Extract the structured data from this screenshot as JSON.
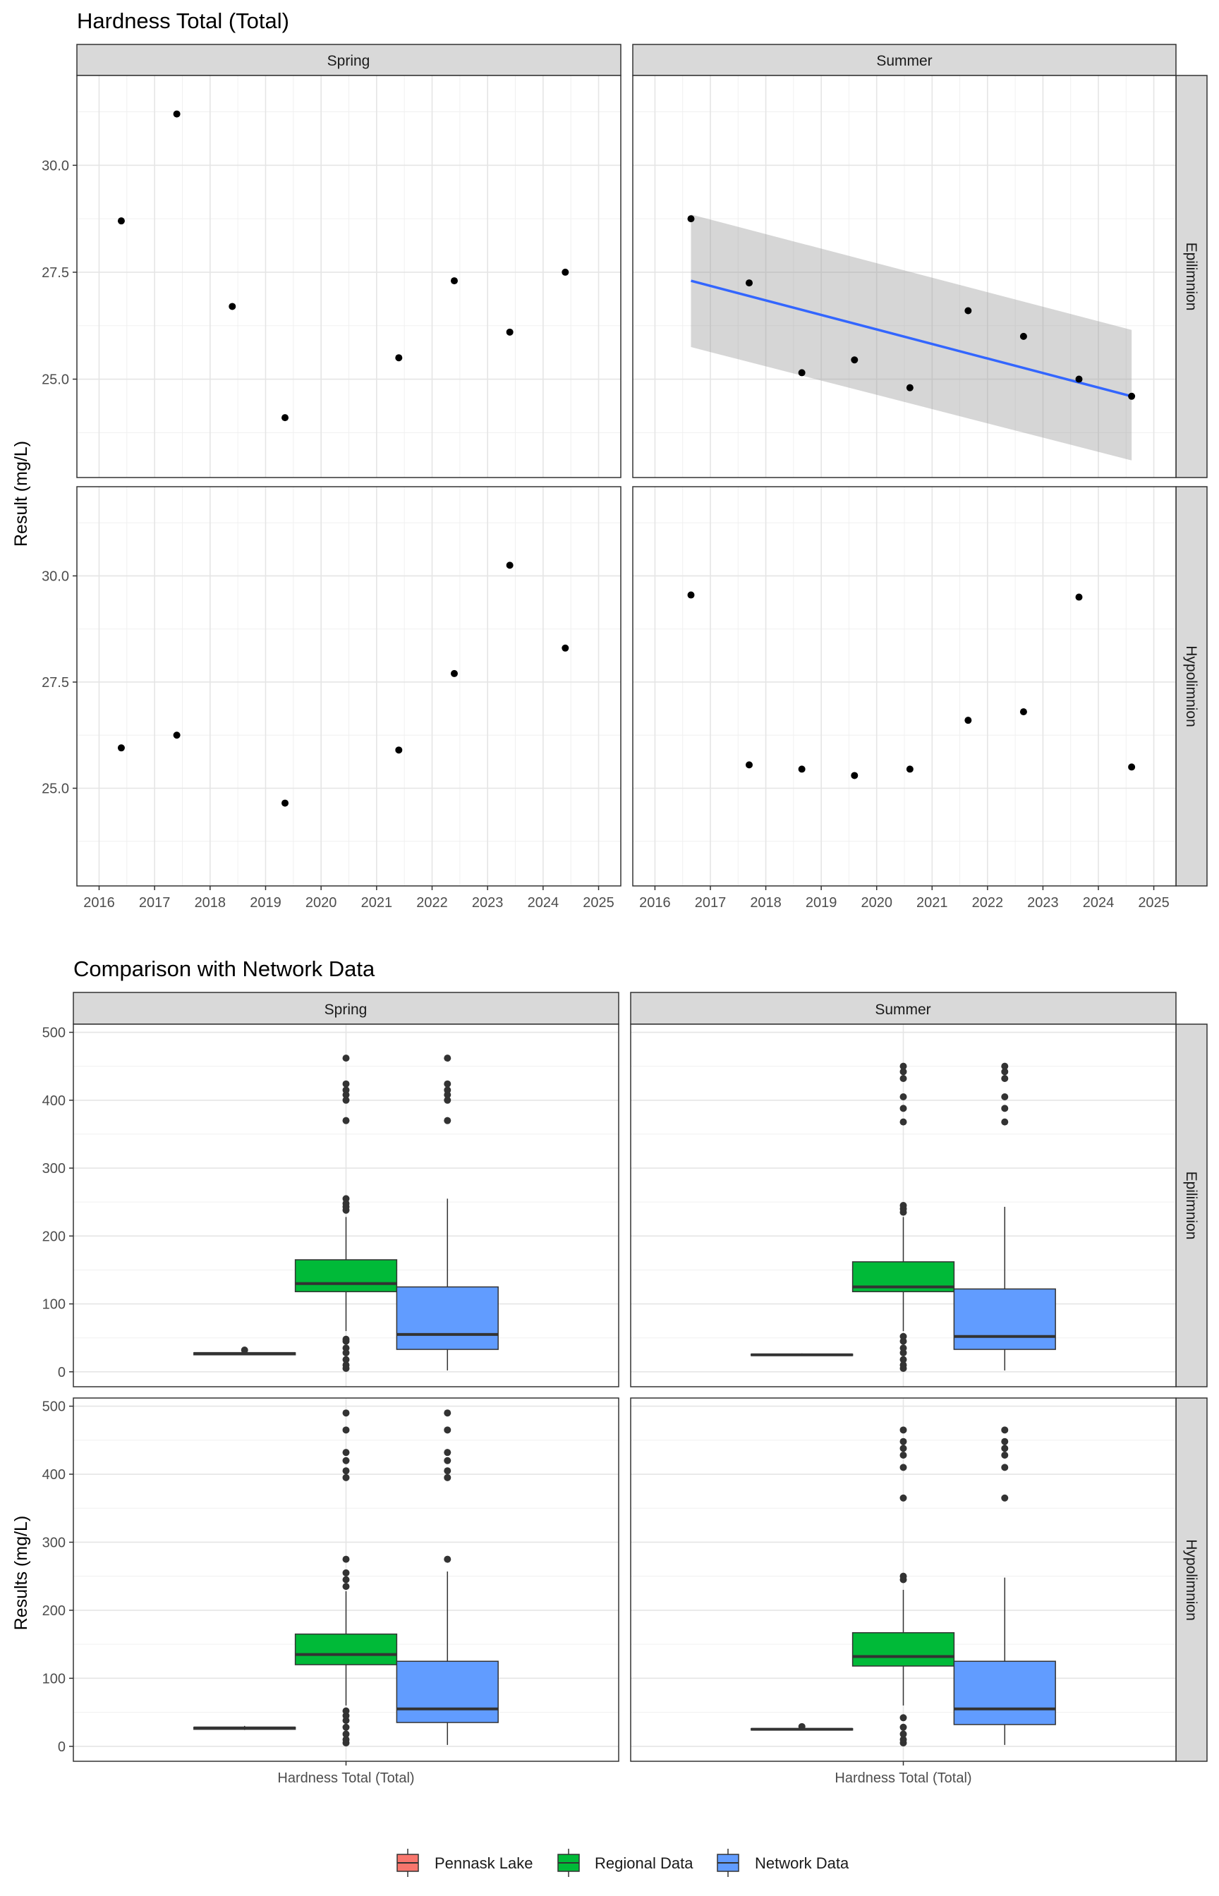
{
  "chart_data": [
    {
      "type": "scatter",
      "title": "Hardness Total (Total)",
      "ylabel": "Result (mg/L)",
      "xlabel": "",
      "x_ticks": [
        "2016",
        "2017",
        "2018",
        "2019",
        "2020",
        "2021",
        "2022",
        "2023",
        "2024",
        "2025"
      ],
      "y_ticks": [
        "25.0",
        "27.5",
        "30.0"
      ],
      "xlim": [
        2015.6,
        2025.4
      ],
      "ylim": [
        22.7,
        32.1
      ],
      "grid": true,
      "column_facets": [
        "Spring",
        "Summer"
      ],
      "row_facets": [
        "Epilimnion",
        "Hypolimnion"
      ],
      "panels": [
        {
          "column": "Spring",
          "row": "Epilimnion",
          "points": [
            [
              2016.4,
              28.7
            ],
            [
              2017.4,
              31.2
            ],
            [
              2018.4,
              26.7
            ],
            [
              2019.35,
              24.1
            ],
            [
              2021.4,
              25.5
            ],
            [
              2022.4,
              27.3
            ],
            [
              2023.4,
              26.1
            ],
            [
              2024.4,
              27.5
            ]
          ]
        },
        {
          "column": "Summer",
          "row": "Epilimnion",
          "points": [
            [
              2016.65,
              28.75
            ],
            [
              2017.7,
              27.25
            ],
            [
              2018.65,
              25.15
            ],
            [
              2019.6,
              25.45
            ],
            [
              2020.6,
              24.8
            ],
            [
              2021.65,
              26.6
            ],
            [
              2022.65,
              26.0
            ],
            [
              2023.65,
              25.0
            ],
            [
              2024.6,
              24.6
            ]
          ],
          "trend": {
            "method": "linear",
            "x": [
              2016.65,
              2024.6
            ],
            "y": [
              27.3,
              24.6
            ],
            "ci_lower": [
              25.75,
              23.1
            ],
            "ci_upper": [
              28.85,
              26.15
            ]
          }
        },
        {
          "column": "Spring",
          "row": "Hypolimnion",
          "points": [
            [
              2016.4,
              25.95
            ],
            [
              2017.4,
              26.25
            ],
            [
              2019.35,
              24.65
            ],
            [
              2021.4,
              25.9
            ],
            [
              2022.4,
              27.7
            ],
            [
              2023.4,
              30.25
            ],
            [
              2024.4,
              28.3
            ]
          ]
        },
        {
          "column": "Summer",
          "row": "Hypolimnion",
          "points": [
            [
              2016.65,
              29.55
            ],
            [
              2017.7,
              25.55
            ],
            [
              2018.65,
              25.45
            ],
            [
              2019.6,
              25.3
            ],
            [
              2020.6,
              25.45
            ],
            [
              2021.65,
              26.6
            ],
            [
              2022.65,
              26.8
            ],
            [
              2023.65,
              29.5
            ],
            [
              2024.6,
              25.5
            ]
          ]
        }
      ]
    },
    {
      "type": "boxplot",
      "title": "Comparison with Network Data",
      "ylabel": "Results (mg/L)",
      "category_label": "Hardness Total (Total)",
      "y_ticks": [
        "0",
        "100",
        "200",
        "300",
        "400",
        "500"
      ],
      "ylim": [
        -22,
        512
      ],
      "grid": true,
      "column_facets": [
        "Spring",
        "Summer"
      ],
      "row_facets": [
        "Epilimnion",
        "Hypolimnion"
      ],
      "legend": {
        "position": "bottom",
        "entries": [
          {
            "name": "Pennask Lake",
            "color": "#F8766D"
          },
          {
            "name": "Regional Data",
            "color": "#00BA38"
          },
          {
            "name": "Network Data",
            "color": "#619CFF"
          }
        ]
      },
      "panels": [
        {
          "column": "Spring",
          "row": "Epilimnion",
          "boxes": [
            {
              "series": "Pennask Lake",
              "min": 25,
              "q1": 25,
              "median": 27,
              "q3": 28,
              "max": 29,
              "outliers": [
                32
              ]
            },
            {
              "series": "Regional Data",
              "min": 60,
              "q1": 118,
              "median": 130,
              "q3": 165,
              "max": 228,
              "outliers": [
                5,
                10,
                18,
                28,
                35,
                45,
                48,
                238,
                243,
                248,
                255,
                370,
                400,
                408,
                415,
                424,
                462
              ]
            },
            {
              "series": "Network Data",
              "min": 2,
              "q1": 33,
              "median": 55,
              "q3": 125,
              "max": 255,
              "outliers": [
                370,
                400,
                408,
                415,
                424,
                462
              ]
            }
          ]
        },
        {
          "column": "Summer",
          "row": "Epilimnion",
          "boxes": [
            {
              "series": "Pennask Lake",
              "min": 24,
              "q1": 24,
              "median": 25,
              "q3": 26,
              "max": 27,
              "outliers": []
            },
            {
              "series": "Regional Data",
              "min": 60,
              "q1": 118,
              "median": 125,
              "q3": 162,
              "max": 228,
              "outliers": [
                5,
                10,
                18,
                28,
                35,
                45,
                52,
                235,
                240,
                245,
                368,
                388,
                405,
                432,
                442,
                450
              ]
            },
            {
              "series": "Network Data",
              "min": 2,
              "q1": 33,
              "median": 52,
              "q3": 122,
              "max": 243,
              "outliers": [
                368,
                388,
                405,
                432,
                442,
                450
              ]
            }
          ]
        },
        {
          "column": "Spring",
          "row": "Hypolimnion",
          "boxes": [
            {
              "series": "Pennask Lake",
              "min": 24,
              "q1": 25,
              "median": 27,
              "q3": 28,
              "max": 30,
              "outliers": []
            },
            {
              "series": "Regional Data",
              "min": 60,
              "q1": 120,
              "median": 135,
              "q3": 165,
              "max": 228,
              "outliers": [
                5,
                10,
                18,
                28,
                38,
                45,
                52,
                235,
                245,
                255,
                275,
                395,
                405,
                420,
                432,
                465,
                490
              ]
            },
            {
              "series": "Network Data",
              "min": 2,
              "q1": 35,
              "median": 55,
              "q3": 125,
              "max": 257,
              "outliers": [
                275,
                395,
                405,
                420,
                432,
                465,
                490
              ]
            }
          ]
        },
        {
          "column": "Summer",
          "row": "Hypolimnion",
          "boxes": [
            {
              "series": "Pennask Lake",
              "min": 24,
              "q1": 24,
              "median": 25,
              "q3": 26,
              "max": 27,
              "outliers": [
                29
              ]
            },
            {
              "series": "Regional Data",
              "min": 60,
              "q1": 118,
              "median": 132,
              "q3": 167,
              "max": 230,
              "outliers": [
                5,
                10,
                18,
                28,
                42,
                245,
                250,
                365,
                410,
                428,
                438,
                448,
                465
              ]
            },
            {
              "series": "Network Data",
              "min": 2,
              "q1": 32,
              "median": 55,
              "q3": 125,
              "max": 248,
              "outliers": [
                365,
                410,
                428,
                438,
                448,
                465
              ]
            }
          ]
        }
      ]
    }
  ]
}
